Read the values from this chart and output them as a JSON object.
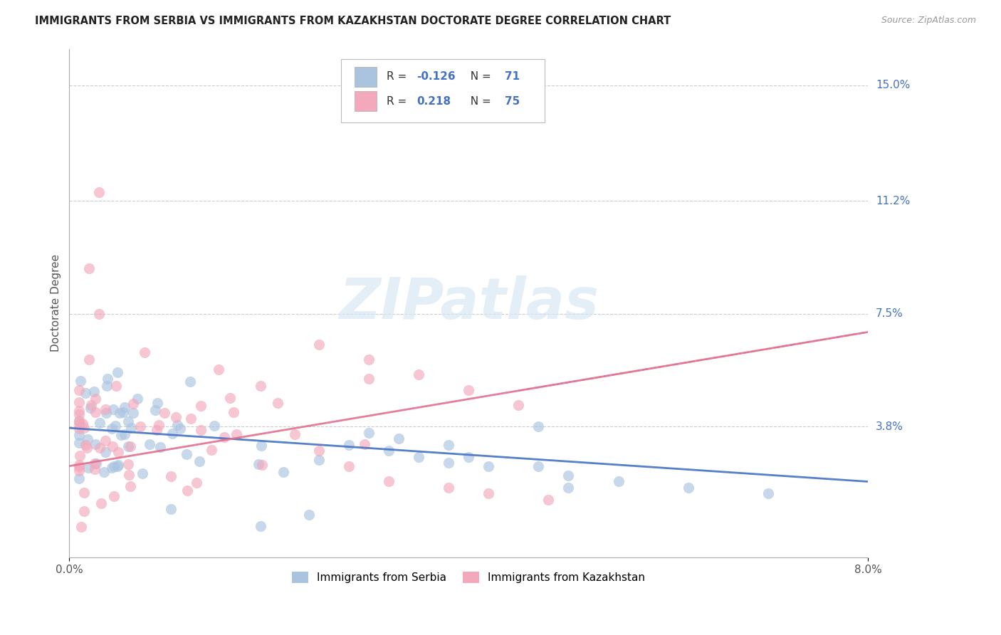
{
  "title": "IMMIGRANTS FROM SERBIA VS IMMIGRANTS FROM KAZAKHSTAN DOCTORATE DEGREE CORRELATION CHART",
  "source_text": "Source: ZipAtlas.com",
  "ylabel": "Doctorate Degree",
  "ytick_labels": [
    "15.0%",
    "11.2%",
    "7.5%",
    "3.8%"
  ],
  "ytick_values": [
    0.15,
    0.112,
    0.075,
    0.038
  ],
  "xlim": [
    0.0,
    0.08
  ],
  "ylim": [
    -0.005,
    0.162
  ],
  "background_color": "#ffffff",
  "grid_color": "#cccccc",
  "serbia_scatter_color": "#aac4e0",
  "kazakhstan_scatter_color": "#f4a8bc",
  "serbia_line_color": "#4472C4",
  "kazakhstan_line_color": "#e07090",
  "serbia_R": "-0.126",
  "serbia_N": "71",
  "kazakhstan_R": "0.218",
  "kazakhstan_N": "75",
  "legend_labels": [
    "Immigrants from Serbia",
    "Immigrants from Kazakhstan"
  ],
  "watermark_text": "ZIPatlas",
  "label_color": "#4472C4",
  "title_color": "#222222",
  "source_color": "#999999"
}
